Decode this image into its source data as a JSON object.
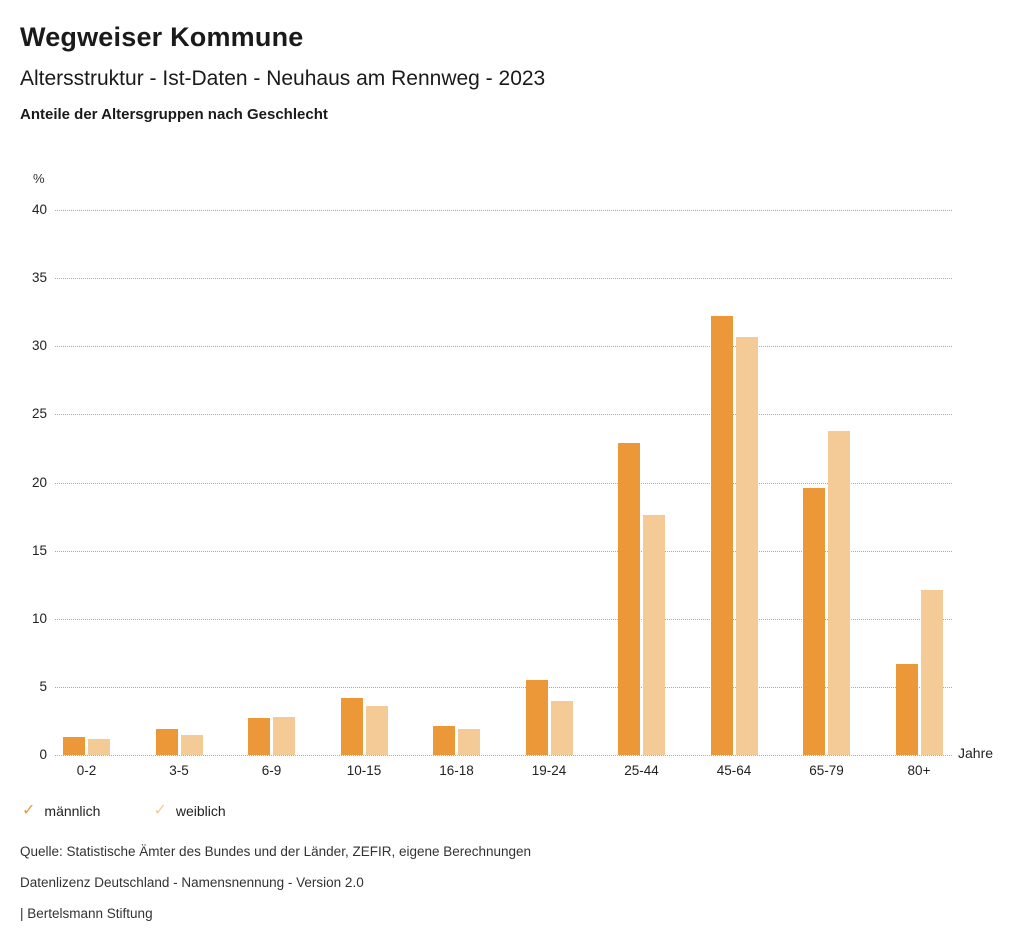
{
  "header": {
    "title": "Wegweiser Kommune",
    "subtitle": "Altersstruktur - Ist-Daten - Neuhaus am Rennweg - 2023",
    "chart_heading": "Anteile der Altersgruppen nach Geschlecht"
  },
  "chart_data": {
    "type": "bar",
    "title": "Anteile der Altersgruppen nach Geschlecht",
    "categories": [
      "0-2",
      "3-5",
      "6-9",
      "10-15",
      "16-18",
      "19-24",
      "25-44",
      "45-64",
      "65-79",
      "80+"
    ],
    "series": [
      {
        "name": "männlich",
        "color": "#EC9838",
        "values": [
          1.3,
          1.9,
          2.7,
          4.2,
          2.1,
          5.5,
          22.9,
          32.2,
          19.6,
          6.7
        ]
      },
      {
        "name": "weiblich",
        "color": "#F4CB97",
        "values": [
          1.2,
          1.5,
          2.8,
          3.6,
          1.9,
          4.0,
          17.6,
          30.7,
          23.8,
          12.1
        ]
      }
    ],
    "xlabel": "Jahre",
    "ylabel": "%",
    "ylim": [
      0,
      40
    ],
    "yticks": [
      0,
      5,
      10,
      15,
      20,
      25,
      30,
      35,
      40
    ],
    "grid": "horizontal-dotted",
    "legend_position": "bottom-left"
  },
  "legend": {
    "check_icon": "✓",
    "items": [
      {
        "label": "männlich",
        "color": "#EC9838"
      },
      {
        "label": "weiblich",
        "color": "#F4CB97"
      }
    ]
  },
  "footer": {
    "source": "Quelle: Statistische Ämter des Bundes und der Länder, ZEFIR, eigene Berechnungen",
    "license": "Datenlizenz Deutschland - Namensnennung - Version 2.0",
    "attribution": "| Bertelsmann Stiftung"
  }
}
